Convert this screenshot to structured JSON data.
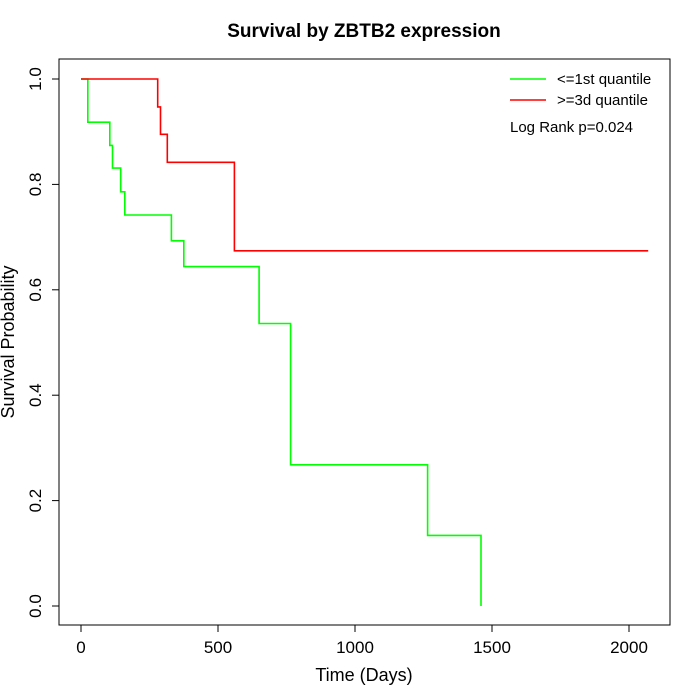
{
  "chart_data": {
    "type": "line",
    "title": "Survival by ZBTB2 expression",
    "xlabel": "Time (Days)",
    "ylabel": "Survival Probability",
    "xlim": [
      0,
      2070
    ],
    "ylim": [
      0,
      1
    ],
    "xticks": [
      "0",
      "500",
      "1000",
      "1500",
      "2000"
    ],
    "xtick_values": [
      0,
      500,
      1000,
      1500,
      2000
    ],
    "yticks": [
      "0.0",
      "0.2",
      "0.4",
      "0.6",
      "0.8",
      "1.0"
    ],
    "ytick_values": [
      0,
      0.2,
      0.4,
      0.6,
      0.8,
      1.0
    ],
    "grid": false,
    "legend_position": "top-right",
    "annotation": "Log Rank p=0.024",
    "series": [
      {
        "name": "<=1st quantile",
        "color": "#00ff00",
        "x": [
          0,
          25,
          25,
          105,
          105,
          115,
          115,
          145,
          145,
          160,
          160,
          330,
          330,
          375,
          375,
          650,
          650,
          765,
          765,
          1265,
          1265,
          1460,
          1460
        ],
        "y": [
          1.0,
          1.0,
          0.918,
          0.918,
          0.874,
          0.874,
          0.831,
          0.831,
          0.786,
          0.786,
          0.742,
          0.742,
          0.693,
          0.693,
          0.644,
          0.644,
          0.536,
          0.536,
          0.268,
          0.268,
          0.134,
          0.134,
          0.0
        ]
      },
      {
        "name": ">=3d quantile",
        "color": "#ff0000",
        "x": [
          0,
          280,
          280,
          290,
          290,
          315,
          315,
          560,
          560,
          2070
        ],
        "y": [
          1.0,
          1.0,
          0.947,
          0.947,
          0.895,
          0.895,
          0.842,
          0.842,
          0.674,
          0.674
        ]
      }
    ]
  }
}
